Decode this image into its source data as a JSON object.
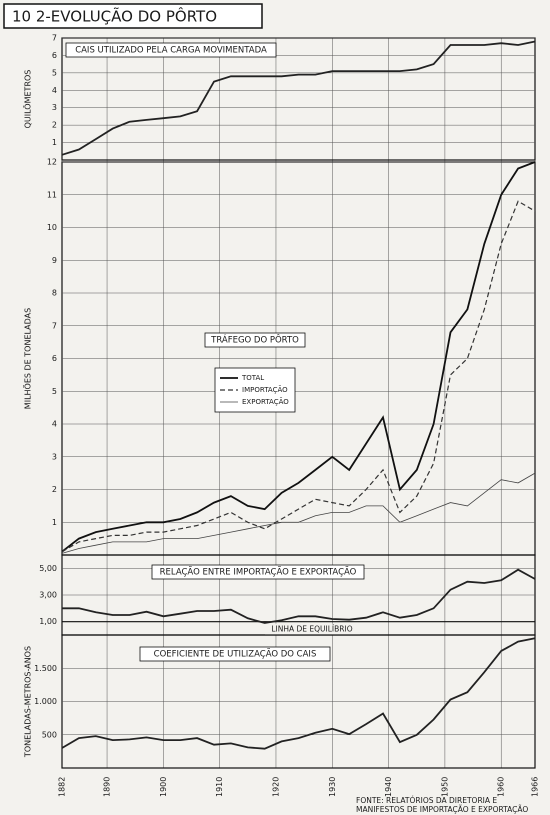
{
  "header": {
    "title": "10 2-EVOLUÇÃO DO PÔRTO"
  },
  "chart_data": [
    {
      "type": "line",
      "title": "CAIS UTILIZADO PELA CARGA MOVIMENTADA",
      "ylabel": "QUILÔMETROS",
      "x": [
        1882,
        1885,
        1888,
        1891,
        1894,
        1897,
        1900,
        1903,
        1906,
        1909,
        1912,
        1915,
        1918,
        1921,
        1924,
        1927,
        1930,
        1933,
        1936,
        1939,
        1942,
        1945,
        1948,
        1951,
        1954,
        1957,
        1960,
        1963,
        1966
      ],
      "values": [
        0.3,
        0.6,
        1.2,
        1.8,
        2.2,
        2.3,
        2.4,
        2.5,
        2.8,
        4.5,
        4.8,
        4.8,
        4.8,
        4.8,
        4.9,
        4.9,
        5.1,
        5.1,
        5.1,
        5.1,
        5.1,
        5.2,
        5.5,
        6.6,
        6.6,
        6.6,
        6.7,
        6.6,
        6.8
      ],
      "color": "#222222",
      "xlim": [
        1882,
        1966
      ],
      "ylim": [
        0,
        7
      ],
      "yticks": [
        1,
        2,
        3,
        4,
        5,
        6,
        7
      ],
      "grid": true
    },
    {
      "type": "line",
      "title": "TRÁFEGO DO PÔRTO",
      "ylabel": "MILHÕES DE TONELADAS",
      "x": [
        1882,
        1885,
        1888,
        1891,
        1894,
        1897,
        1900,
        1903,
        1906,
        1909,
        1912,
        1915,
        1918,
        1921,
        1924,
        1927,
        1930,
        1933,
        1936,
        1939,
        1942,
        1945,
        1948,
        1951,
        1954,
        1957,
        1960,
        1963,
        1966
      ],
      "series": [
        {
          "name": "TOTAL",
          "color": "#111111",
          "style": "solid",
          "values": [
            0.1,
            0.5,
            0.7,
            0.8,
            0.9,
            1.0,
            1.0,
            1.1,
            1.3,
            1.6,
            1.8,
            1.5,
            1.4,
            1.9,
            2.2,
            2.6,
            3.0,
            2.6,
            3.4,
            4.2,
            2.0,
            2.6,
            4.0,
            6.8,
            7.5,
            9.5,
            11.0,
            11.8,
            12.0
          ]
        },
        {
          "name": "IMPORTAÇÃO",
          "color": "#333333",
          "style": "dashed",
          "values": [
            0.1,
            0.4,
            0.5,
            0.6,
            0.6,
            0.7,
            0.7,
            0.8,
            0.9,
            1.1,
            1.3,
            1.0,
            0.8,
            1.1,
            1.4,
            1.7,
            1.6,
            1.5,
            2.0,
            2.6,
            1.3,
            1.8,
            2.8,
            5.5,
            6.0,
            7.5,
            9.5,
            10.8,
            10.5
          ]
        },
        {
          "name": "EXPORTAÇÃO",
          "color": "#444444",
          "style": "thin",
          "values": [
            0.05,
            0.2,
            0.3,
            0.4,
            0.4,
            0.4,
            0.5,
            0.5,
            0.5,
            0.6,
            0.7,
            0.8,
            0.9,
            1.0,
            1.0,
            1.2,
            1.3,
            1.3,
            1.5,
            1.5,
            1.0,
            1.2,
            1.4,
            1.6,
            1.5,
            1.9,
            2.3,
            2.2,
            2.5
          ]
        }
      ],
      "xlim": [
        1882,
        1966
      ],
      "ylim": [
        0,
        12
      ],
      "yticks": [
        1,
        2,
        3,
        4,
        5,
        6,
        7,
        8,
        9,
        10,
        11,
        12
      ],
      "grid": true
    },
    {
      "type": "line",
      "title": "RELAÇÃO ENTRE IMPORTAÇÃO E EXPORTAÇÃO",
      "annotation": "LINHA DE EQUILÍBRIO",
      "equilibrium": 1,
      "x": [
        1882,
        1885,
        1888,
        1891,
        1894,
        1897,
        1900,
        1903,
        1906,
        1909,
        1912,
        1915,
        1918,
        1921,
        1924,
        1927,
        1930,
        1933,
        1936,
        1939,
        1942,
        1945,
        1948,
        1951,
        1954,
        1957,
        1960,
        1963,
        1966
      ],
      "values": [
        2.0,
        2.0,
        1.7,
        1.5,
        1.5,
        1.75,
        1.4,
        1.6,
        1.8,
        1.8,
        1.9,
        1.25,
        0.9,
        1.1,
        1.4,
        1.4,
        1.2,
        1.15,
        1.3,
        1.7,
        1.3,
        1.5,
        2.0,
        3.4,
        4.0,
        3.9,
        4.1,
        4.9,
        4.2
      ],
      "color": "#222222",
      "xlim": [
        1882,
        1966
      ],
      "ylim": [
        0,
        6
      ],
      "yticks": [
        {
          "value": 1,
          "label": "1,00"
        },
        {
          "value": 3,
          "label": "3,00"
        },
        {
          "value": 5,
          "label": "5,00"
        }
      ],
      "grid": true
    },
    {
      "type": "line",
      "title": "COEFICIENTE DE UTILIZAÇÃO DO CAIS",
      "ylabel": "TONELADAS-METROS-ANOS",
      "x": [
        1882,
        1885,
        1888,
        1891,
        1894,
        1897,
        1900,
        1903,
        1906,
        1909,
        1912,
        1915,
        1918,
        1921,
        1924,
        1927,
        1930,
        1933,
        1936,
        1939,
        1942,
        1945,
        1948,
        1951,
        1954,
        1957,
        1960,
        1963,
        1966
      ],
      "values": [
        300,
        450,
        480,
        420,
        430,
        460,
        420,
        420,
        450,
        350,
        370,
        310,
        290,
        400,
        450,
        530,
        590,
        510,
        660,
        820,
        390,
        500,
        730,
        1030,
        1140,
        1440,
        1760,
        1900,
        1950
      ],
      "color": "#222222",
      "xlim": [
        1882,
        1966
      ],
      "ylim": [
        0,
        2000
      ],
      "yticks": [
        500,
        {
          "value": 1000,
          "label": "1.000"
        },
        {
          "value": 1500,
          "label": "1.500"
        }
      ],
      "xticks": [
        1882,
        1890,
        1900,
        1910,
        1920,
        1930,
        1940,
        1950,
        1960,
        1966
      ],
      "grid": true
    }
  ],
  "source": [
    "FONTE: RELATÓRIOS DA DIRETORIA E",
    "MANIFESTOS DE IMPORTAÇÃO E EXPORTAÇÃO"
  ]
}
